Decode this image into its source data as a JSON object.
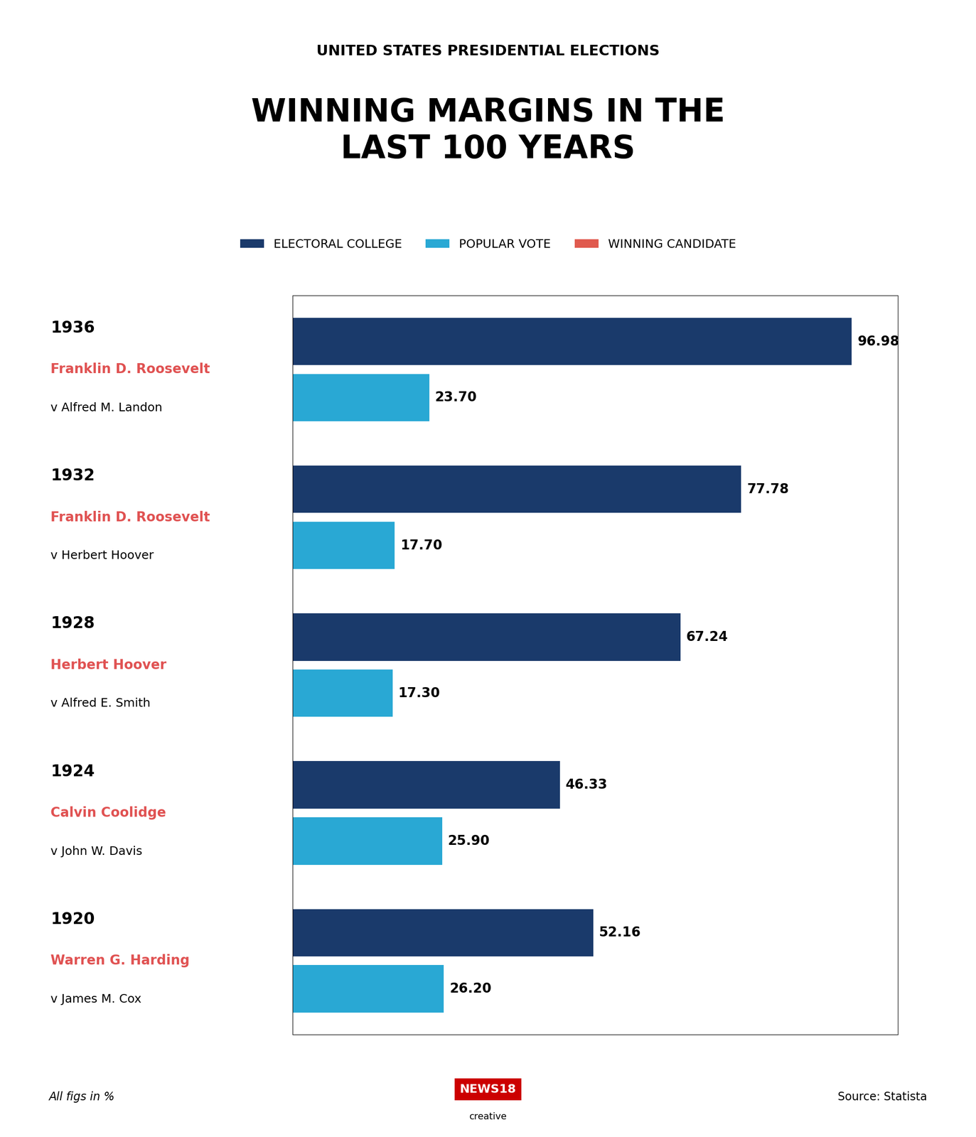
{
  "chart_data": {
    "type": "bar",
    "orientation": "horizontal",
    "subtitle": "UNITED STATES PRESIDENTIAL ELECTIONS",
    "title": "WINNING MARGINS IN THE\nLAST 100 YEARS",
    "categories": [
      "1936",
      "1932",
      "1928",
      "1924",
      "1920"
    ],
    "winners": [
      "Franklin D. Roosevelt",
      "Franklin D. Roosevelt",
      "Herbert Hoover",
      "Calvin Coolidge",
      "Warren G. Harding"
    ],
    "opponents": [
      "v Alfred M. Landon",
      "v Herbert Hoover",
      "v Alfred E. Smith",
      "v John W. Davis",
      "v James M. Cox"
    ],
    "winner_color": "#e05252",
    "series": [
      {
        "name": "ELECTORAL COLLEGE",
        "color": "#1a3a6b",
        "values": [
          96.98,
          77.78,
          67.24,
          46.33,
          52.16
        ],
        "value_labels": [
          "96.98",
          "77.78",
          "67.24",
          "46.33",
          "52.16"
        ]
      },
      {
        "name": "POPULAR VOTE",
        "color": "#29a8d4",
        "values": [
          23.7,
          17.7,
          17.3,
          25.9,
          26.2
        ],
        "value_labels": [
          "23.70",
          "17.70",
          "17.30",
          "25.90",
          "26.20"
        ]
      }
    ],
    "text_legend": {
      "name": "WINNING CANDIDATE",
      "color": "#e05a4e"
    },
    "xlim": [
      0,
      105
    ],
    "xticks": [],
    "tick_labels": false,
    "grid": false,
    "data_labels": true,
    "annotations": [
      "All figs in %",
      "Source: Statista",
      "NEWS18",
      "creative"
    ]
  }
}
